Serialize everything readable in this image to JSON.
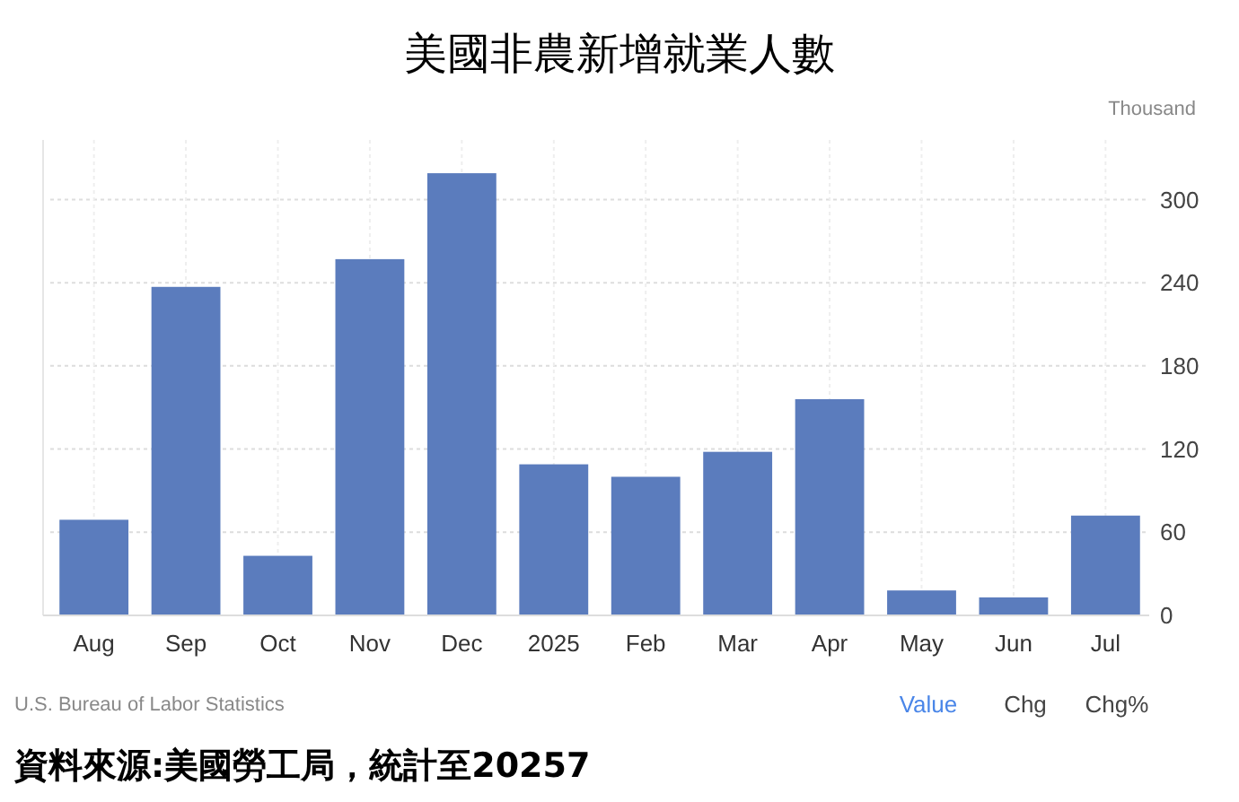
{
  "chart_data": {
    "type": "bar",
    "title": "美國非農新增就業人數",
    "ylabel": "Thousand",
    "categories": [
      "Aug",
      "Sep",
      "Oct",
      "Nov",
      "Dec",
      "2025",
      "Feb",
      "Mar",
      "Apr",
      "May",
      "Jun",
      "Jul"
    ],
    "values": [
      69,
      237,
      43,
      257,
      319,
      109,
      100,
      118,
      156,
      18,
      13,
      72
    ],
    "color": "#5b7cbd",
    "ylim": [
      0,
      343
    ],
    "yticks": [
      0,
      60,
      120,
      180,
      240,
      300
    ],
    "grid": true,
    "annotations": [
      "U.S. Bureau of Labor Statistics",
      "Value",
      "Chg",
      "Chg%",
      "資料來源:美國勞工局，統計至20257"
    ]
  }
}
